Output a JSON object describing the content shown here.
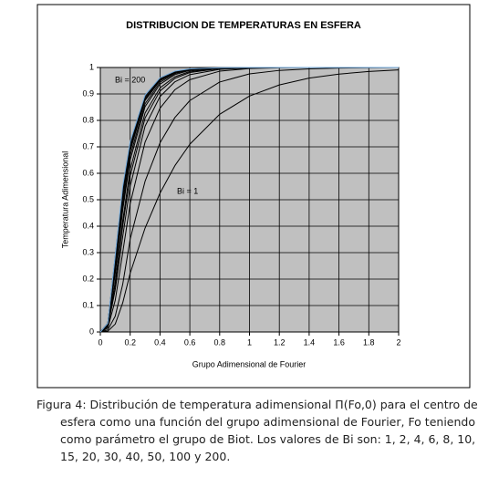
{
  "chart_data": {
    "type": "line",
    "title": "DISTRIBUCION DE TEMPERATURAS EN ESFERA",
    "x_label": "Grupo Adimensional de Fourier",
    "y_label": "Temperatura Adimensional",
    "annotations": [
      "Bi = 200",
      "Bi = 1"
    ],
    "x": [
      0,
      0.05,
      0.1,
      0.15,
      0.2,
      0.3,
      0.4,
      0.5,
      0.6,
      0.8,
      1,
      1.2,
      1.4,
      1.6,
      1.8,
      2
    ],
    "series": [
      {
        "color": "#000000",
        "values": [
          0,
          0.003,
          0.03,
          0.11,
          0.222,
          0.393,
          0.525,
          0.629,
          0.71,
          0.823,
          0.892,
          0.934,
          0.96,
          0.975,
          0.985,
          0.991
        ]
      },
      {
        "color": "#000000",
        "values": [
          0,
          0.008,
          0.06,
          0.18,
          0.351,
          0.57,
          0.715,
          0.811,
          0.875,
          0.945,
          0.976,
          0.989,
          0.995,
          0.998,
          0.999,
          1
        ]
      },
      {
        "color": "#000000",
        "values": [
          0,
          0.015,
          0.12,
          0.3,
          0.485,
          0.718,
          0.846,
          0.916,
          0.954,
          0.986,
          0.996,
          0.999,
          1,
          1,
          1,
          1
        ]
      },
      {
        "color": "#000000",
        "values": [
          0,
          0.02,
          0.16,
          0.36,
          0.551,
          0.778,
          0.89,
          0.946,
          0.973,
          0.993,
          0.998,
          1,
          1,
          1,
          1,
          1
        ]
      },
      {
        "color": "#000000",
        "values": [
          0,
          0.022,
          0.18,
          0.4,
          0.59,
          0.809,
          0.911,
          0.959,
          0.981,
          0.996,
          0.999,
          1,
          1,
          1,
          1,
          1
        ]
      },
      {
        "color": "#000000",
        "values": [
          0,
          0.024,
          0.19,
          0.42,
          0.614,
          0.828,
          0.923,
          0.965,
          0.985,
          0.997,
          0.999,
          1,
          1,
          1,
          1,
          1
        ]
      },
      {
        "color": "#000000",
        "values": [
          0,
          0.026,
          0.22,
          0.46,
          0.65,
          0.852,
          0.937,
          0.973,
          0.989,
          0.998,
          1,
          1,
          1,
          1,
          1,
          1
        ]
      },
      {
        "color": "#000000",
        "values": [
          0,
          0.028,
          0.24,
          0.48,
          0.667,
          0.863,
          0.944,
          0.977,
          0.991,
          0.999,
          1,
          1,
          1,
          1,
          1,
          1
        ]
      },
      {
        "color": "#000000",
        "values": [
          0,
          0.03,
          0.26,
          0.5,
          0.685,
          0.875,
          0.95,
          0.98,
          0.992,
          0.999,
          1,
          1,
          1,
          1,
          1,
          1
        ]
      },
      {
        "color": "#000000",
        "values": [
          0,
          0.031,
          0.27,
          0.52,
          0.695,
          0.88,
          0.953,
          0.982,
          0.993,
          0.999,
          1,
          1,
          1,
          1,
          1,
          1
        ]
      },
      {
        "color": "#000000",
        "values": [
          0,
          0.032,
          0.275,
          0.53,
          0.7,
          0.884,
          0.955,
          0.983,
          0.9935,
          0.999,
          1,
          1,
          1,
          1,
          1,
          1
        ]
      },
      {
        "color": "#000000",
        "values": [
          0,
          0.033,
          0.285,
          0.54,
          0.711,
          0.89,
          0.959,
          0.985,
          0.994,
          0.999,
          1,
          1,
          1,
          1,
          1,
          1
        ]
      },
      {
        "color": "#6fa8dc",
        "values": [
          0,
          0.033,
          0.29,
          0.55,
          0.72,
          0.896,
          0.961,
          0.986,
          0.995,
          0.999,
          1,
          1,
          1,
          1,
          1,
          1
        ]
      }
    ],
    "xlim": [
      0,
      2
    ],
    "ylim": [
      0,
      1
    ],
    "xticks": [
      0,
      0.2,
      0.4,
      0.6,
      0.8,
      1,
      1.2,
      1.4,
      1.6,
      1.8,
      2
    ],
    "yticks": [
      0,
      0.1,
      0.2,
      0.3,
      0.4,
      0.5,
      0.6,
      0.7,
      0.8,
      0.9,
      1
    ],
    "grid": true,
    "plot_background": "#c0c0c0"
  },
  "caption": "Figura 4: Distribución de temperatura adimensional Π(Fo,0) para el centro de la esfera como una función del grupo adimensional de Fourier, Fo teniendo como parámetro el grupo de Biot. Los valores de Bi son: 1, 2, 4, 6, 8, 10, 15, 20, 30, 40, 50, 100 y 200."
}
